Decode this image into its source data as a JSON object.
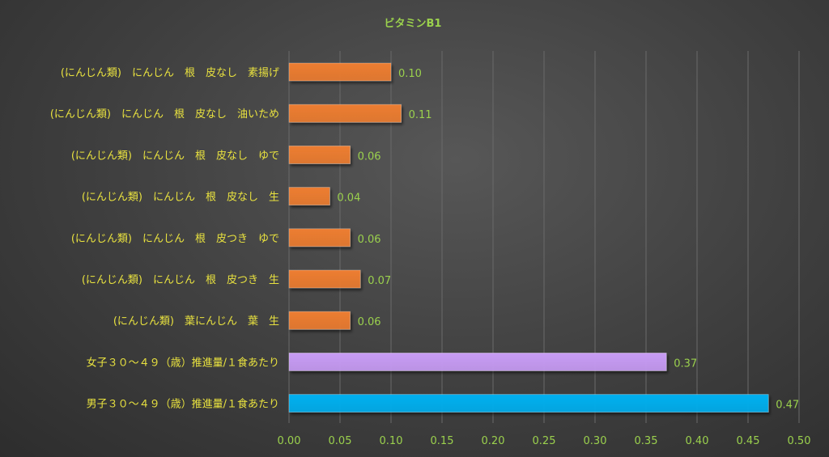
{
  "chart_data": {
    "type": "bar",
    "orientation": "horizontal",
    "title": "ビタミンB1",
    "categories": [
      "(にんじん類)　にんじん　根　皮なし　素揚げ",
      "(にんじん類)　にんじん　根　皮なし　油いため",
      "(にんじん類)　にんじん　根　皮なし　ゆで",
      "(にんじん類)　にんじん　根　皮なし　生",
      "(にんじん類)　にんじん　根　皮つき　ゆで",
      "(にんじん類)　にんじん　根　皮つき　生",
      "(にんじん類)　葉にんじん　葉　生",
      "女子３０～４９（歳）推進量/１食あたり",
      "男子３０～４９（歳）推進量/１食あたり"
    ],
    "values": [
      0.1,
      0.11,
      0.06,
      0.04,
      0.06,
      0.07,
      0.06,
      0.37,
      0.47
    ],
    "value_labels": [
      "0.10",
      "0.11",
      "0.06",
      "0.04",
      "0.06",
      "0.07",
      "0.06",
      "0.37",
      "0.47"
    ],
    "bar_colors": [
      "#ed7d31",
      "#ed7d31",
      "#ed7d31",
      "#ed7d31",
      "#ed7d31",
      "#ed7d31",
      "#ed7d31",
      "#c89cf5",
      "#00b0f0"
    ],
    "xlim": [
      0,
      0.5
    ],
    "xticks": [
      "0.00",
      "0.05",
      "0.10",
      "0.15",
      "0.20",
      "0.25",
      "0.30",
      "0.35",
      "0.40",
      "0.45",
      "0.50"
    ],
    "grid": true,
    "legend": "none",
    "colors": {
      "title": "#9bd14d",
      "category_label": "#e9e23f",
      "data_label": "#9bd14d",
      "tick_label": "#9bd14d"
    }
  }
}
